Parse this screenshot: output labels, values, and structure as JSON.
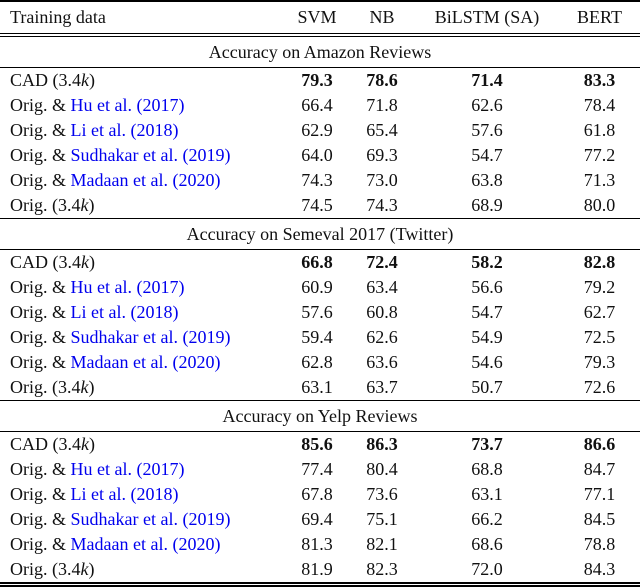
{
  "table": {
    "link_color": "#0000EE",
    "text_color": "#111111",
    "columns": [
      {
        "label": "Training data"
      },
      {
        "label": "SVM"
      },
      {
        "label": "NB"
      },
      {
        "label": "BiLSTM (SA)"
      },
      {
        "label": "BERT"
      }
    ],
    "sections": [
      {
        "title": "Accuracy on Amazon Reviews",
        "rows": [
          {
            "label_pre": "CAD (3.4",
            "label_italic": "k",
            "label_post": ")",
            "label_cite": "",
            "values": [
              "79.3",
              "78.6",
              "71.4",
              "83.3"
            ],
            "bold": true
          },
          {
            "label_pre": "Orig. & ",
            "label_cite": "Hu et al. (2017)",
            "label_italic": "",
            "label_post": "",
            "values": [
              "66.4",
              "71.8",
              "62.6",
              "78.4"
            ],
            "bold": false
          },
          {
            "label_pre": "Orig. & ",
            "label_cite": "Li et al. (2018)",
            "label_italic": "",
            "label_post": "",
            "values": [
              "62.9",
              "65.4",
              "57.6",
              "61.8"
            ],
            "bold": false
          },
          {
            "label_pre": "Orig. & ",
            "label_cite": "Sudhakar et al. (2019)",
            "label_italic": "",
            "label_post": "",
            "values": [
              "64.0",
              "69.3",
              "54.7",
              "77.2"
            ],
            "bold": false
          },
          {
            "label_pre": "Orig. & ",
            "label_cite": "Madaan et al. (2020)",
            "label_italic": "",
            "label_post": "",
            "values": [
              "74.3",
              "73.0",
              "63.8",
              "71.3"
            ],
            "bold": false
          },
          {
            "label_pre": "Orig. (3.4",
            "label_italic": "k",
            "label_post": ")",
            "label_cite": "",
            "values": [
              "74.5",
              "74.3",
              "68.9",
              "80.0"
            ],
            "bold": false
          }
        ]
      },
      {
        "title": "Accuracy on Semeval 2017 (Twitter)",
        "rows": [
          {
            "label_pre": "CAD (3.4",
            "label_italic": "k",
            "label_post": ")",
            "label_cite": "",
            "values": [
              "66.8",
              "72.4",
              "58.2",
              "82.8"
            ],
            "bold": true
          },
          {
            "label_pre": "Orig. & ",
            "label_cite": "Hu et al. (2017)",
            "label_italic": "",
            "label_post": "",
            "values": [
              "60.9",
              "63.4",
              "56.6",
              "79.2"
            ],
            "bold": false
          },
          {
            "label_pre": "Orig. & ",
            "label_cite": "Li et al. (2018)",
            "label_italic": "",
            "label_post": "",
            "values": [
              "57.6",
              "60.8",
              "54.7",
              "62.7"
            ],
            "bold": false
          },
          {
            "label_pre": "Orig. & ",
            "label_cite": "Sudhakar et al. (2019)",
            "label_italic": "",
            "label_post": "",
            "values": [
              "59.4",
              "62.6",
              "54.9",
              "72.5"
            ],
            "bold": false
          },
          {
            "label_pre": "Orig. & ",
            "label_cite": "Madaan et al. (2020)",
            "label_italic": "",
            "label_post": "",
            "values": [
              "62.8",
              "63.6",
              "54.6",
              "79.3"
            ],
            "bold": false
          },
          {
            "label_pre": "Orig. (3.4",
            "label_italic": "k",
            "label_post": ")",
            "label_cite": "",
            "values": [
              "63.1",
              "63.7",
              "50.7",
              "72.6"
            ],
            "bold": false
          }
        ]
      },
      {
        "title": "Accuracy on Yelp Reviews",
        "rows": [
          {
            "label_pre": "CAD (3.4",
            "label_italic": "k",
            "label_post": ")",
            "label_cite": "",
            "values": [
              "85.6",
              "86.3",
              "73.7",
              "86.6"
            ],
            "bold": true
          },
          {
            "label_pre": "Orig. & ",
            "label_cite": "Hu et al. (2017)",
            "label_italic": "",
            "label_post": "",
            "values": [
              "77.4",
              "80.4",
              "68.8",
              "84.7"
            ],
            "bold": false
          },
          {
            "label_pre": "Orig. & ",
            "label_cite": "Li et al. (2018)",
            "label_italic": "",
            "label_post": "",
            "values": [
              "67.8",
              "73.6",
              "63.1",
              "77.1"
            ],
            "bold": false
          },
          {
            "label_pre": "Orig. & ",
            "label_cite": "Sudhakar et al. (2019)",
            "label_italic": "",
            "label_post": "",
            "values": [
              "69.4",
              "75.1",
              "66.2",
              "84.5"
            ],
            "bold": false
          },
          {
            "label_pre": "Orig. & ",
            "label_cite": "Madaan et al. (2020)",
            "label_italic": "",
            "label_post": "",
            "values": [
              "81.3",
              "82.1",
              "68.6",
              "78.8"
            ],
            "bold": false
          },
          {
            "label_pre": "Orig. (3.4",
            "label_italic": "k",
            "label_post": ")",
            "label_cite": "",
            "values": [
              "81.9",
              "82.3",
              "72.0",
              "84.3"
            ],
            "bold": false
          }
        ]
      }
    ]
  }
}
